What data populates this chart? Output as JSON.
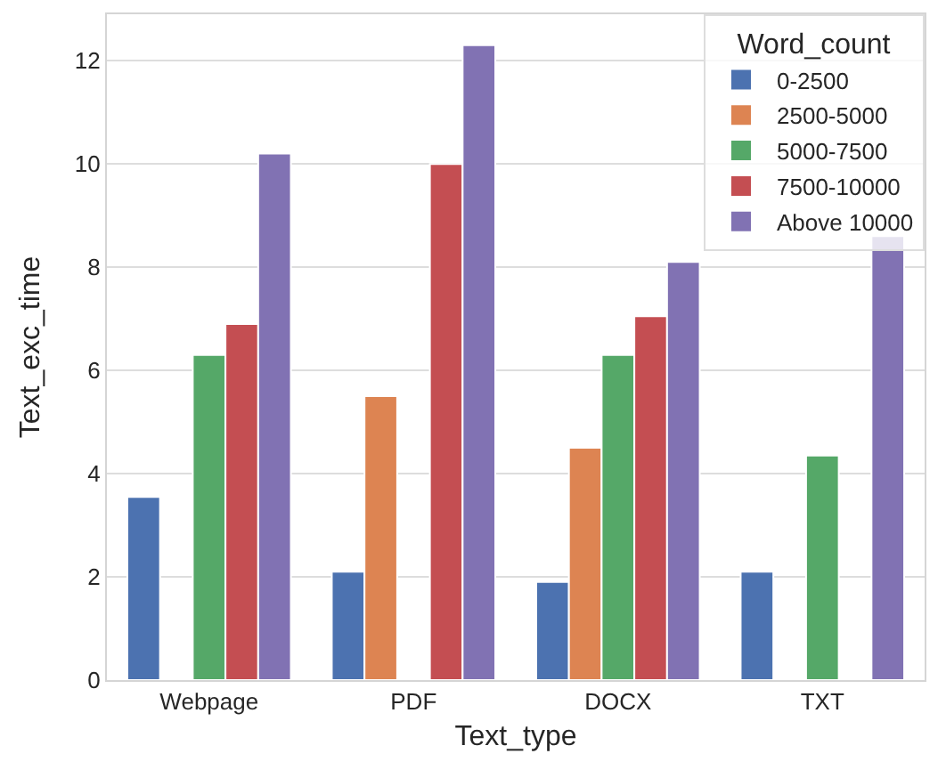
{
  "chart_data": {
    "type": "bar",
    "xlabel": "Text_type",
    "ylabel": "Text_exc_time",
    "legend_title": "Word_count",
    "categories": [
      "Webpage",
      "PDF",
      "DOCX",
      "TXT"
    ],
    "series": [
      {
        "name": "0-2500",
        "color": "#4c72b0",
        "values": [
          3.55,
          2.1,
          1.9,
          2.1
        ]
      },
      {
        "name": "2500-5000",
        "color": "#dd8452",
        "values": [
          null,
          5.5,
          4.5,
          null
        ]
      },
      {
        "name": "5000-7500",
        "color": "#55a868",
        "values": [
          6.3,
          null,
          6.3,
          4.35
        ]
      },
      {
        "name": "7500-10000",
        "color": "#c44e52",
        "values": [
          6.9,
          10.0,
          7.05,
          null
        ]
      },
      {
        "name": "Above 10000",
        "color": "#8172b3",
        "values": [
          10.2,
          12.3,
          8.1,
          8.6
        ]
      }
    ],
    "ylim": [
      0,
      12.9
    ],
    "yticks": [
      0,
      2,
      4,
      6,
      8,
      10,
      12
    ],
    "grid": "y",
    "legend": "top right"
  }
}
